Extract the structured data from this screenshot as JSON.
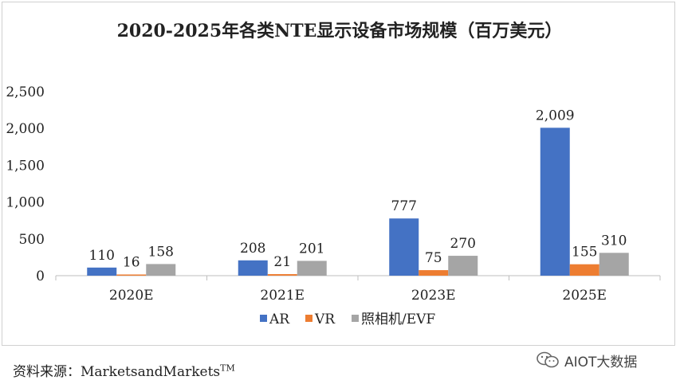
{
  "chart_data": {
    "type": "bar",
    "title": "2020-2025年各类NTE显示设备市场规模（百万美元）",
    "categories": [
      "2020E",
      "2021E",
      "2023E",
      "2025E"
    ],
    "series": [
      {
        "name": "AR",
        "color": "#4472c4",
        "values": [
          110,
          208,
          777,
          2009
        ]
      },
      {
        "name": "VR",
        "color": "#ed7d31",
        "values": [
          16,
          21,
          75,
          155
        ]
      },
      {
        "name": "照相机/EVF",
        "color": "#a5a5a5",
        "values": [
          158,
          201,
          270,
          310
        ]
      }
    ],
    "data_labels": [
      [
        "110",
        "208",
        "777",
        "2,009"
      ],
      [
        "16",
        "21",
        "75",
        "155"
      ],
      [
        "158",
        "201",
        "270",
        "310"
      ]
    ],
    "ylim": [
      0,
      2500
    ],
    "yticks": [
      0,
      500,
      1000,
      1500,
      2000,
      2500
    ],
    "ytick_labels": [
      "0",
      "500",
      "1,000",
      "1,500",
      "2,000",
      "2,500"
    ],
    "xlabel": "",
    "ylabel": "",
    "legend_position": "bottom",
    "grid": false
  },
  "source": {
    "text": "资料来源：MarketsandMarkets",
    "sup": "TM"
  },
  "watermark": {
    "text": "AIOT大数据",
    "icon": "wechat-icon"
  }
}
